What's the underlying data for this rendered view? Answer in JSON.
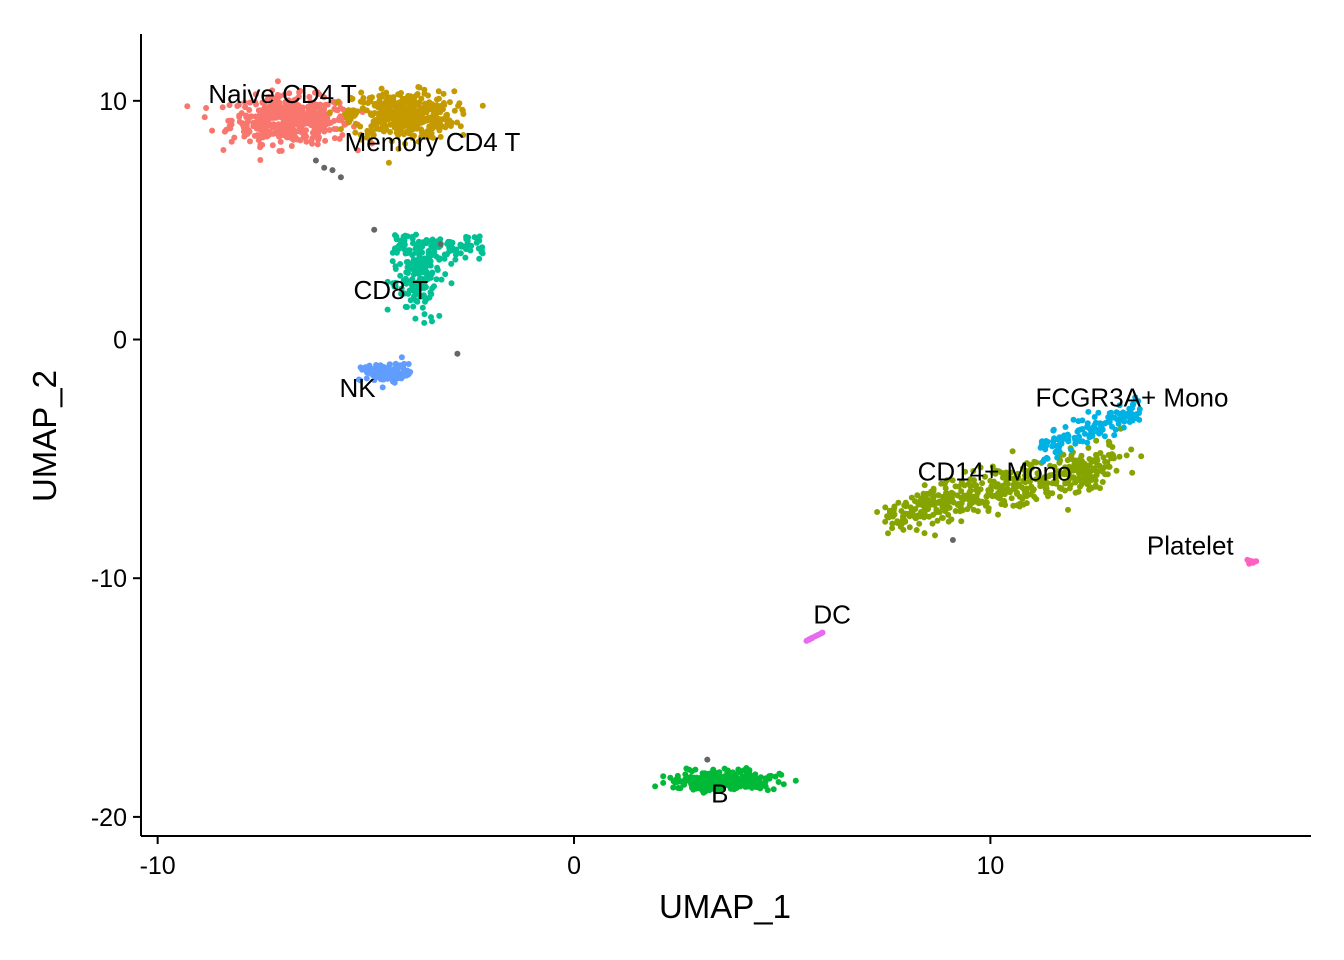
{
  "chart_data": {
    "type": "scatter",
    "title": "",
    "xlabel": "UMAP_1",
    "ylabel": "UMAP_2",
    "xlim": [
      -10.4,
      17.7
    ],
    "ylim": [
      -20.8,
      12.8
    ],
    "x_ticks": [
      {
        "value": -10,
        "label": "-10"
      },
      {
        "value": 0,
        "label": "0"
      },
      {
        "value": 10,
        "label": "10"
      }
    ],
    "y_ticks": [
      {
        "value": 10,
        "label": "10"
      },
      {
        "value": 0,
        "label": "0"
      },
      {
        "value": -10,
        "label": "-10"
      },
      {
        "value": -20,
        "label": "-20"
      }
    ],
    "grid": false,
    "legend": "none",
    "clusters": [
      {
        "name": "Naive CD4 T",
        "color": "#F8766D",
        "center": [
          -6.8,
          9.2
        ],
        "spread": [
          1.3,
          0.9
        ],
        "n": 480,
        "label_pos": [
          -7.0,
          9.9
        ]
      },
      {
        "name": "Memory CD4 T",
        "color": "#C49A00",
        "center": [
          -4.1,
          9.4
        ],
        "spread": [
          1.1,
          0.9
        ],
        "n": 420,
        "label_pos": [
          -3.4,
          7.9
        ]
      },
      {
        "name": "CD8 T",
        "color": "#00C094",
        "center": [
          -3.7,
          2.6
        ],
        "spread": [
          0.5,
          1.4
        ],
        "n": 260,
        "label_pos": [
          -4.4,
          1.7
        ]
      },
      {
        "name": "NK",
        "color": "#619CFF",
        "center": [
          -4.5,
          -1.4
        ],
        "spread": [
          0.5,
          0.35
        ],
        "n": 150,
        "label_pos": [
          -5.2,
          -2.4
        ]
      },
      {
        "name": "B",
        "color": "#00B937",
        "center": [
          3.6,
          -18.5
        ],
        "spread": [
          1.0,
          0.35
        ],
        "n": 330,
        "label_pos": [
          3.5,
          -19.4
        ]
      },
      {
        "name": "CD14+ Mono",
        "color": "#85A400",
        "center": [
          9.5,
          -6.6
        ],
        "spread": [
          1.7,
          0.7
        ],
        "n": 500,
        "label_pos": [
          10.1,
          -5.9
        ]
      },
      {
        "name": "FCGR3A+ Mono",
        "color": "#00B2E3",
        "center": [
          12.4,
          -3.8
        ],
        "spread": [
          0.6,
          0.45
        ],
        "n": 140,
        "label_pos": [
          13.4,
          -2.8
        ]
      },
      {
        "name": "DC",
        "color": "#E66BEE",
        "center": [
          5.5,
          -12.7
        ],
        "spread": [
          0.15,
          0.25
        ],
        "n": 18,
        "label_pos": [
          6.2,
          -11.9
        ]
      },
      {
        "name": "Platelet",
        "color": "#FF61C3",
        "center": [
          16.3,
          -9.3
        ],
        "spread": [
          0.08,
          0.06
        ],
        "n": 14,
        "label_pos": [
          14.8,
          -9.0
        ]
      }
    ]
  }
}
